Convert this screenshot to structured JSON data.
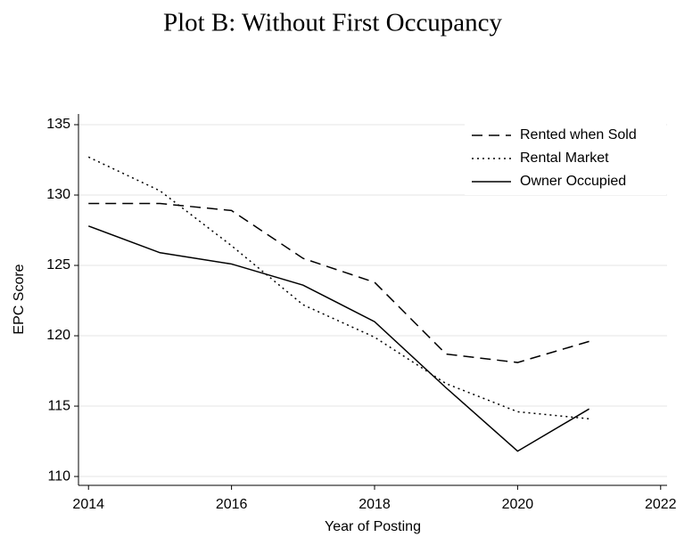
{
  "chart_data": {
    "type": "line",
    "title": "Plot B: Without First Occupancy",
    "xlabel": "Year of Posting",
    "ylabel": "EPC Score",
    "x": [
      2014,
      2015,
      2016,
      2017,
      2018,
      2019,
      2020,
      2021
    ],
    "series": [
      {
        "name": "Rented when Sold",
        "color": "#000000",
        "dash": "dashed",
        "values": [
          129.4,
          129.4,
          128.9,
          125.5,
          123.8,
          118.7,
          118.1,
          119.6
        ]
      },
      {
        "name": "Rental Market",
        "color": "#000000",
        "dash": "dotted",
        "values": [
          132.7,
          130.3,
          126.4,
          122.2,
          119.9,
          116.6,
          114.6,
          114.1
        ]
      },
      {
        "name": "Owner Occupied",
        "color": "#000000",
        "dash": "solid",
        "values": [
          127.8,
          125.9,
          125.1,
          123.6,
          121.0,
          116.3,
          111.8,
          114.8
        ]
      }
    ],
    "xlim": [
      2013.86,
      2022.09
    ],
    "xticks": [
      2014,
      2016,
      2018,
      2020,
      2022
    ],
    "ylim": [
      109.37,
      135.76
    ],
    "yticks": [
      110,
      115,
      120,
      125,
      130,
      135
    ],
    "grid": true,
    "legend": "top-right"
  }
}
